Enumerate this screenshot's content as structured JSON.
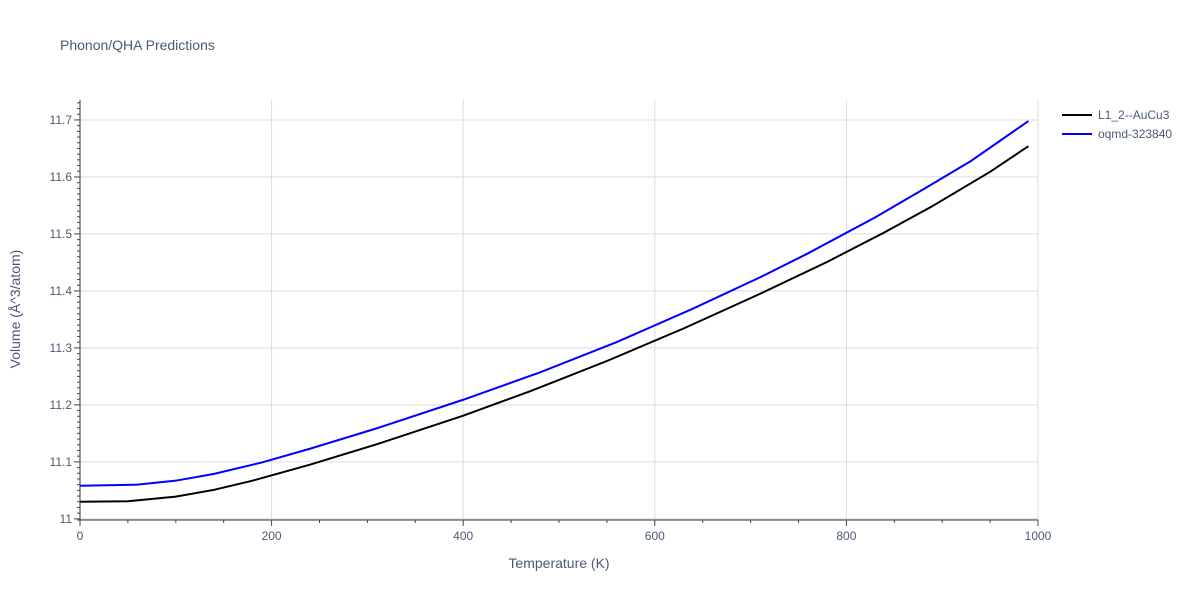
{
  "chart_data": {
    "type": "line",
    "title": "Phonon/QHA Predictions",
    "xlabel": "Temperature (K)",
    "ylabel": "Volume (Å^3/atom)",
    "xlim": [
      0,
      1000
    ],
    "ylim": [
      10.998,
      11.735
    ],
    "x_ticks": [
      0,
      200,
      400,
      600,
      800,
      1000
    ],
    "y_ticks": [
      11,
      11.1,
      11.2,
      11.3,
      11.4,
      11.5,
      11.6,
      11.7
    ],
    "y_tick_labels": [
      "11",
      "11.1",
      "11.2",
      "11.3",
      "11.4",
      "11.5",
      "11.6",
      "11.7"
    ],
    "x_tick_labels": [
      "0",
      "200",
      "400",
      "600",
      "800",
      "1000"
    ],
    "grid": true,
    "legend_position": "top-right",
    "series": [
      {
        "name": "L1_2--AuCu3",
        "color": "#000000",
        "x": [
          0,
          50,
          100,
          140,
          180,
          240,
          310,
          400,
          470,
          550,
          630,
          710,
          780,
          840,
          890,
          950,
          990
        ],
        "y": [
          11.03,
          11.031,
          11.039,
          11.051,
          11.067,
          11.095,
          11.131,
          11.181,
          11.224,
          11.277,
          11.334,
          11.395,
          11.451,
          11.503,
          11.549,
          11.609,
          11.654
        ]
      },
      {
        "name": "oqmd-323840",
        "color": "#0000ff",
        "x": [
          0,
          60,
          100,
          140,
          190,
          240,
          310,
          400,
          480,
          560,
          640,
          710,
          760,
          830,
          880,
          930,
          990
        ],
        "y": [
          11.058,
          11.06,
          11.067,
          11.079,
          11.099,
          11.123,
          11.159,
          11.209,
          11.257,
          11.31,
          11.369,
          11.424,
          11.466,
          11.529,
          11.578,
          11.628,
          11.698
        ]
      }
    ]
  }
}
